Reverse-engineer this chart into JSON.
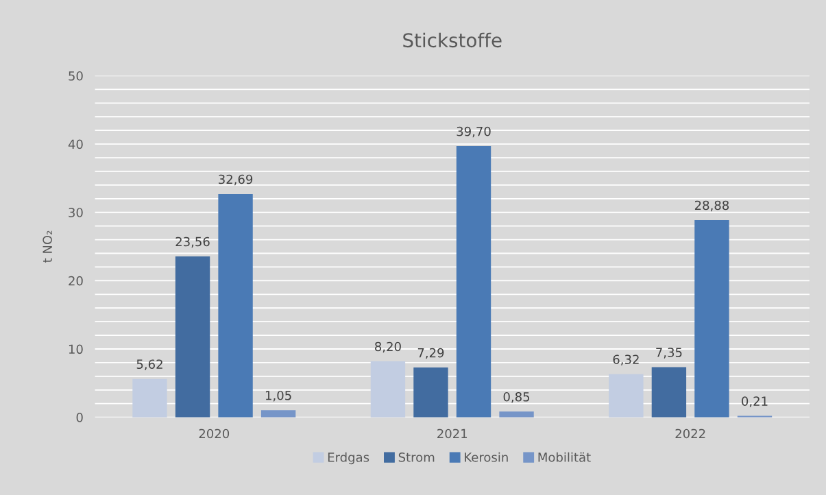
{
  "chart_data": {
    "type": "bar",
    "title": "Stickstoffe",
    "ylabel": "t NO₂",
    "categories": [
      "2020",
      "2021",
      "2022"
    ],
    "series": [
      {
        "name": "Erdgas",
        "color": "#c2cde2",
        "values": [
          5.62,
          8.2,
          6.32
        ],
        "value_labels": [
          "5,62",
          "8,20",
          "6,32"
        ]
      },
      {
        "name": "Strom",
        "color": "#426ca0",
        "values": [
          23.56,
          7.29,
          7.35
        ],
        "value_labels": [
          "23,56",
          "7,29",
          "7,35"
        ]
      },
      {
        "name": "Kerosin",
        "color": "#4a7ab5",
        "values": [
          32.69,
          39.7,
          28.88
        ],
        "value_labels": [
          "32,69",
          "39,70",
          "28,88"
        ]
      },
      {
        "name": "Mobilität",
        "color": "#7695c8",
        "values": [
          1.05,
          0.85,
          0.21
        ],
        "value_labels": [
          "1,05",
          "0,85",
          "0,21"
        ]
      }
    ],
    "ylim": [
      0,
      50
    ],
    "yticks": [
      0,
      {
        "value": 2,
        "label": null
      },
      {
        "value": 4,
        "label": null
      },
      {
        "value": 6,
        "label": null
      },
      {
        "value": 8,
        "label": null
      },
      10,
      {
        "value": 12,
        "label": null
      },
      {
        "value": 14,
        "label": null
      },
      {
        "value": 16,
        "label": null
      },
      {
        "value": 18,
        "label": null
      },
      20,
      {
        "value": 22,
        "label": null
      },
      {
        "value": 24,
        "label": null
      },
      {
        "value": 26,
        "label": null
      },
      {
        "value": 28,
        "label": null
      },
      30,
      {
        "value": 32,
        "label": null
      },
      {
        "value": 34,
        "label": null
      },
      {
        "value": 36,
        "label": null
      },
      {
        "value": 38,
        "label": null
      },
      40,
      {
        "value": 42,
        "label": null
      },
      {
        "value": 44,
        "label": null
      },
      {
        "value": 46,
        "label": null
      },
      {
        "value": 48,
        "label": null
      },
      50
    ],
    "grid": "y",
    "legend": "bottom"
  }
}
